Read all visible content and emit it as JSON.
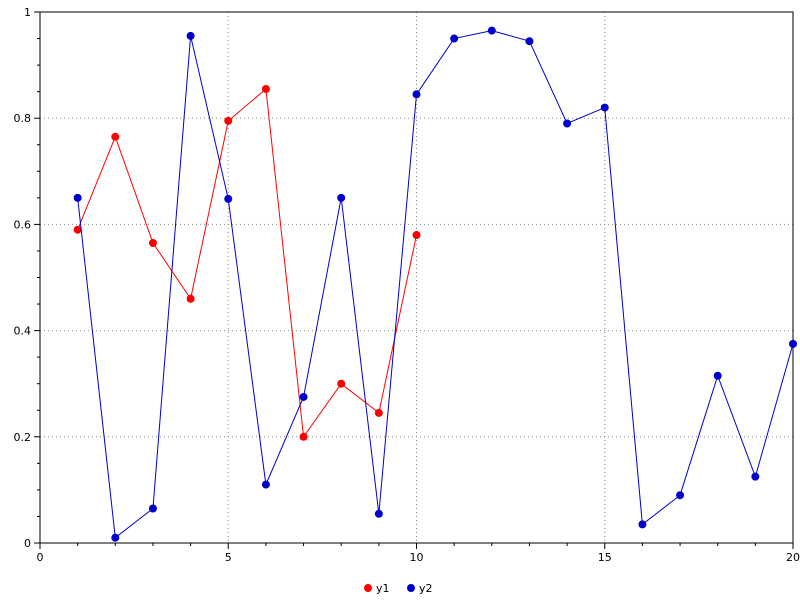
{
  "chart_data": {
    "type": "line",
    "title": "",
    "xlabel": "",
    "ylabel": "",
    "xlim": [
      0,
      20
    ],
    "ylim": [
      0,
      1
    ],
    "grid": true,
    "legend_position": "bottom-center",
    "x_ticks": {
      "values": [
        0,
        5,
        10,
        15,
        20
      ],
      "labels": [
        "0",
        "5",
        "10",
        "15",
        "20"
      ]
    },
    "y_ticks": {
      "values": [
        0,
        0.2,
        0.4,
        0.6,
        0.8,
        1
      ],
      "labels": [
        "0",
        "0.2",
        "0.4",
        "0.6",
        "0.8",
        "1"
      ]
    },
    "x_minor_step": 1,
    "y_minor_step": 0.05,
    "colors": {
      "frame": "#000000",
      "grid": "#888888",
      "text": "#000000",
      "background": "#ffffff"
    },
    "series": [
      {
        "name": "y1",
        "color": "#ff0000",
        "x": [
          1,
          2,
          3,
          4,
          5,
          6,
          7,
          8,
          9,
          10
        ],
        "y": [
          0.59,
          0.765,
          0.565,
          0.46,
          0.795,
          0.855,
          0.2,
          0.3,
          0.245,
          0.58
        ]
      },
      {
        "name": "y2",
        "color": "#0000cc",
        "x": [
          1,
          2,
          3,
          4,
          5,
          6,
          7,
          8,
          9,
          10,
          11,
          12,
          13,
          14,
          15,
          16,
          17,
          18,
          19,
          20
        ],
        "y": [
          0.65,
          0.01,
          0.065,
          0.955,
          0.648,
          0.11,
          0.275,
          0.65,
          0.055,
          0.845,
          0.95,
          0.965,
          0.945,
          0.79,
          0.82,
          0.035,
          0.09,
          0.315,
          0.125,
          0.375
        ]
      }
    ]
  }
}
